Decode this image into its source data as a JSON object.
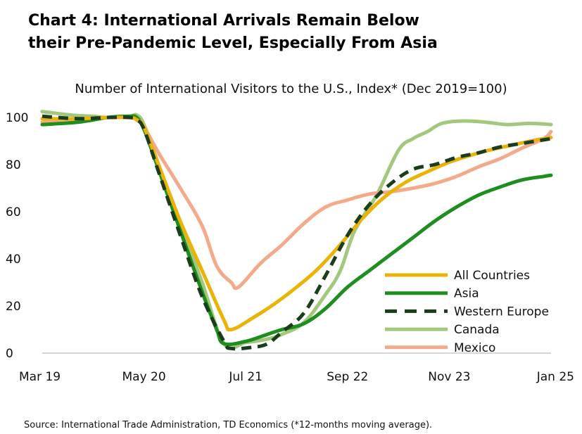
{
  "title_lines": [
    "Chart 4: International Arrivals Remain Below",
    "their Pre-Pandemic Level, Especially From Asia"
  ],
  "source": "Source: International Trade Administration, TD Economics (*12-months moving average).",
  "chart_data": {
    "type": "line",
    "title": "Number of International Visitors to the U.S., Index* (Dec 2019=100)",
    "xlabel": "",
    "ylabel": "",
    "ylim": [
      0,
      105
    ],
    "yticks": [
      0,
      20,
      40,
      60,
      80,
      100
    ],
    "grid": false,
    "legend_position": "bottom-right",
    "x_start": "2019-03",
    "x_end": "2025-01",
    "x_tick_labels": [
      "Mar 19",
      "May 20",
      "Jul 21",
      "Sep 22",
      "Nov 23",
      "Jan 25"
    ],
    "x_tick_dates": [
      "2019-03",
      "2020-05",
      "2021-07",
      "2022-09",
      "2023-11",
      "2025-01"
    ],
    "series": [
      {
        "name": "Canada",
        "color": "#a3c77d",
        "dash": "",
        "points": [
          [
            "2019-03",
            102.5
          ],
          [
            "2019-07",
            101
          ],
          [
            "2019-10",
            100.5
          ],
          [
            "2019-12",
            100
          ],
          [
            "2020-03",
            100.5
          ],
          [
            "2020-04",
            101
          ],
          [
            "2020-05",
            97
          ],
          [
            "2020-07",
            80
          ],
          [
            "2020-10",
            55
          ],
          [
            "2021-01",
            30
          ],
          [
            "2021-04",
            4
          ],
          [
            "2021-07",
            4.5
          ],
          [
            "2021-10",
            6
          ],
          [
            "2021-12",
            8
          ],
          [
            "2022-03",
            13
          ],
          [
            "2022-06",
            25
          ],
          [
            "2022-08",
            35
          ],
          [
            "2022-10",
            52
          ],
          [
            "2023-01",
            67
          ],
          [
            "2023-04",
            86
          ],
          [
            "2023-06",
            91
          ],
          [
            "2023-08",
            94
          ],
          [
            "2023-10",
            97.5
          ],
          [
            "2024-01",
            98.5
          ],
          [
            "2024-04",
            98
          ],
          [
            "2024-07",
            97
          ],
          [
            "2024-10",
            97.5
          ],
          [
            "2025-01",
            97
          ]
        ]
      },
      {
        "name": "Mexico",
        "color": "#f2aa8a",
        "dash": "",
        "points": [
          [
            "2019-03",
            98
          ],
          [
            "2019-07",
            98.5
          ],
          [
            "2019-10",
            99.5
          ],
          [
            "2019-12",
            100
          ],
          [
            "2020-03",
            100
          ],
          [
            "2020-04",
            99
          ],
          [
            "2020-05",
            96
          ],
          [
            "2020-07",
            85
          ],
          [
            "2020-10",
            70
          ],
          [
            "2021-01",
            54
          ],
          [
            "2021-03",
            37
          ],
          [
            "2021-05",
            30
          ],
          [
            "2021-06",
            28
          ],
          [
            "2021-09",
            38
          ],
          [
            "2021-12",
            46
          ],
          [
            "2022-03",
            55
          ],
          [
            "2022-06",
            62
          ],
          [
            "2022-09",
            65
          ],
          [
            "2022-12",
            67.5
          ],
          [
            "2023-03",
            68.5
          ],
          [
            "2023-06",
            70
          ],
          [
            "2023-09",
            72
          ],
          [
            "2023-12",
            75
          ],
          [
            "2024-03",
            79
          ],
          [
            "2024-06",
            82.5
          ],
          [
            "2024-09",
            87
          ],
          [
            "2024-12",
            91
          ],
          [
            "2025-01",
            94
          ]
        ]
      },
      {
        "name": "Asia",
        "color": "#1e8f1e",
        "dash": "",
        "points": [
          [
            "2019-03",
            97
          ],
          [
            "2019-08",
            98
          ],
          [
            "2019-12",
            100
          ],
          [
            "2020-03",
            100.5
          ],
          [
            "2020-04",
            100
          ],
          [
            "2020-05",
            95
          ],
          [
            "2020-07",
            78
          ],
          [
            "2020-10",
            52
          ],
          [
            "2021-01",
            26
          ],
          [
            "2021-03",
            10
          ],
          [
            "2021-04",
            4
          ],
          [
            "2021-07",
            5
          ],
          [
            "2021-10",
            8
          ],
          [
            "2021-12",
            10
          ],
          [
            "2022-03",
            12.5
          ],
          [
            "2022-06",
            19
          ],
          [
            "2022-09",
            28
          ],
          [
            "2022-12",
            35
          ],
          [
            "2023-03",
            42
          ],
          [
            "2023-06",
            49
          ],
          [
            "2023-09",
            56
          ],
          [
            "2023-12",
            62
          ],
          [
            "2024-03",
            67
          ],
          [
            "2024-06",
            70.5
          ],
          [
            "2024-09",
            73.5
          ],
          [
            "2024-12",
            75
          ],
          [
            "2025-01",
            75.5
          ]
        ]
      },
      {
        "name": "All Countries",
        "color": "#eab308",
        "dash": "",
        "points": [
          [
            "2019-03",
            99.5
          ],
          [
            "2019-08",
            99.5
          ],
          [
            "2019-12",
            100
          ],
          [
            "2020-03",
            100
          ],
          [
            "2020-04",
            99
          ],
          [
            "2020-05",
            96
          ],
          [
            "2020-07",
            80
          ],
          [
            "2020-10",
            56
          ],
          [
            "2021-01",
            35
          ],
          [
            "2021-04",
            14
          ],
          [
            "2021-05",
            10
          ],
          [
            "2021-08",
            15
          ],
          [
            "2021-11",
            21
          ],
          [
            "2022-02",
            28
          ],
          [
            "2022-05",
            36
          ],
          [
            "2022-08",
            46
          ],
          [
            "2022-11",
            57
          ],
          [
            "2023-02",
            66
          ],
          [
            "2023-05",
            72.5
          ],
          [
            "2023-08",
            77
          ],
          [
            "2023-11",
            81
          ],
          [
            "2024-02",
            84
          ],
          [
            "2024-05",
            86.5
          ],
          [
            "2024-08",
            88.5
          ],
          [
            "2024-11",
            90.5
          ],
          [
            "2025-01",
            91.5
          ]
        ]
      },
      {
        "name": "Western Europe",
        "color": "#1b3d1b",
        "dash": "14 9",
        "points": [
          [
            "2019-03",
            100.5
          ],
          [
            "2019-08",
            99.5
          ],
          [
            "2019-12",
            100
          ],
          [
            "2020-03",
            100
          ],
          [
            "2020-04",
            99
          ],
          [
            "2020-05",
            95
          ],
          [
            "2020-07",
            77
          ],
          [
            "2020-10",
            50
          ],
          [
            "2021-01",
            24
          ],
          [
            "2021-04",
            5
          ],
          [
            "2021-05",
            2
          ],
          [
            "2021-08",
            2.5
          ],
          [
            "2021-10",
            4
          ],
          [
            "2021-12",
            9
          ],
          [
            "2022-03",
            17
          ],
          [
            "2022-06",
            33
          ],
          [
            "2022-09",
            50
          ],
          [
            "2022-12",
            63
          ],
          [
            "2023-03",
            72
          ],
          [
            "2023-06",
            78
          ],
          [
            "2023-09",
            80
          ],
          [
            "2023-12",
            83
          ],
          [
            "2024-03",
            85
          ],
          [
            "2024-06",
            87.5
          ],
          [
            "2024-09",
            89
          ],
          [
            "2025-01",
            91
          ]
        ]
      }
    ],
    "legend_order": [
      "All Countries",
      "Asia",
      "Western Europe",
      "Canada",
      "Mexico"
    ]
  }
}
